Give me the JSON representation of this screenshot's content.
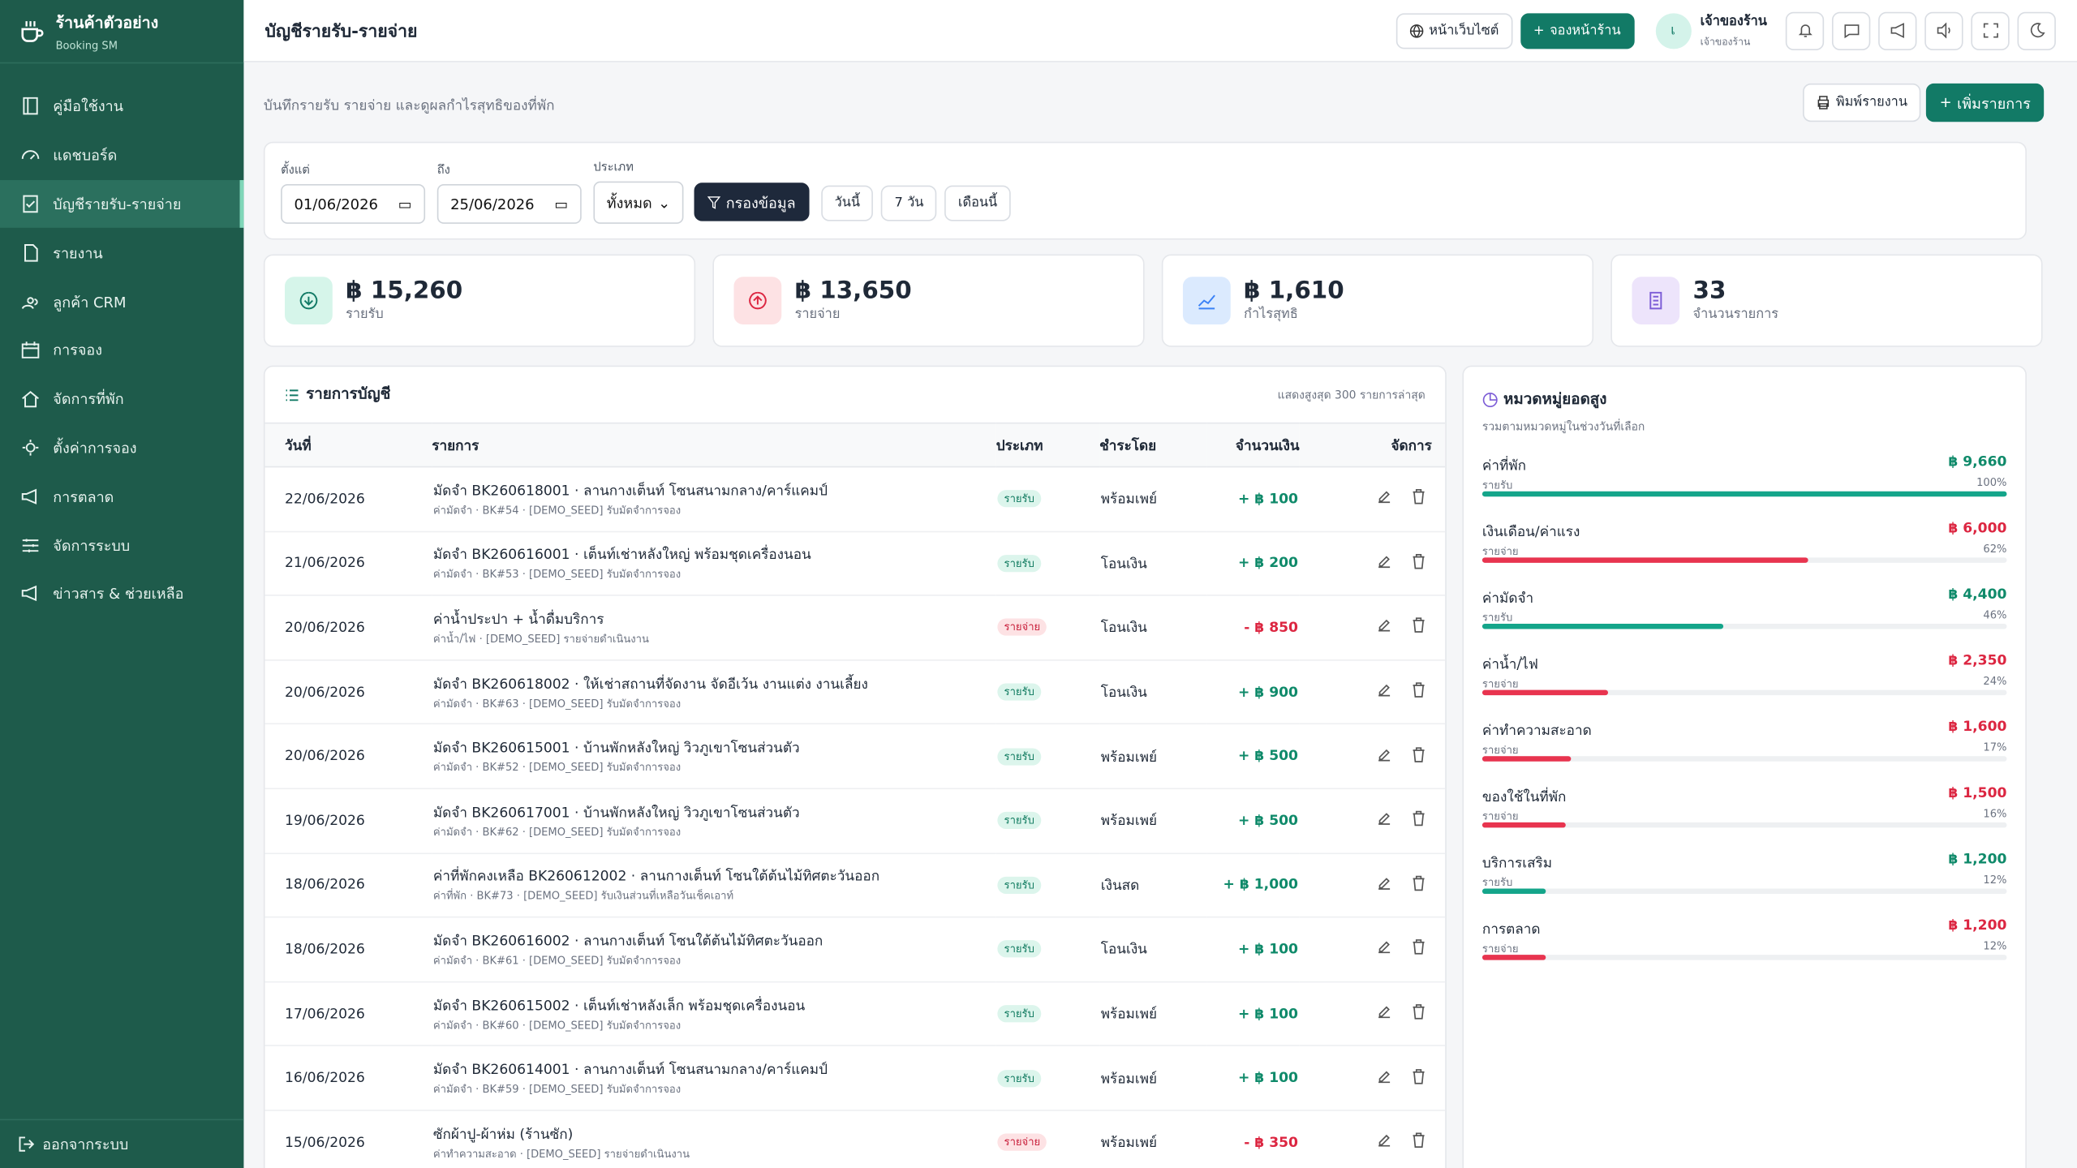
{
  "sidebar": {
    "brand": "ร้านค้าตัวอย่าง",
    "brand_sub": "Booking SM",
    "nav": [
      "คู่มือใช้งาน",
      "แดชบอร์ด",
      "บัญชีรายรับ-รายจ่าย",
      "รายงาน",
      "ลูกค้า CRM",
      "การจอง",
      "จัดการที่พัก",
      "ตั้งค่าการจอง",
      "การตลาด",
      "จัดการระบบ",
      "ข่าวสาร & ช่วยเหลือ"
    ],
    "active": 2,
    "logout": "ออกจากระบบ"
  },
  "header": {
    "title": "บัญชีรายรับ-รายจ่าย",
    "website": "หน้าเว็บไซต์",
    "book": "จองหน้าร้าน",
    "avatar": "เ",
    "user": "เจ้าของร้าน",
    "role": "เจ้าของร้าน"
  },
  "page": {
    "subtitle": "บันทึกรายรับ รายจ่าย และดูผลกำไรสุทธิของที่พัก",
    "print": "พิมพ์รายงาน",
    "add": "เพิ่มรายการ"
  },
  "filters": {
    "from_label": "ตั้งแต่",
    "from": "01/06/2026",
    "to_label": "ถึง",
    "to": "25/06/2026",
    "type_label": "ประเภท",
    "type": "ทั้งหมด",
    "apply": "กรองข้อมูล",
    "quick": [
      "วันนี้",
      "7 วัน",
      "เดือนนี้"
    ]
  },
  "stats": [
    {
      "value": "฿ 15,260",
      "label": "รายรับ"
    },
    {
      "value": "฿ 13,650",
      "label": "รายจ่าย"
    },
    {
      "value": "฿ 1,610",
      "label": "กำไรสุทธิ"
    },
    {
      "value": "33",
      "label": "จำนวนรายการ"
    }
  ],
  "ledger": {
    "title": "รายการบัญชี",
    "note": "แสดงสูงสุด 300 รายการล่าสุด",
    "columns": [
      "วันที่",
      "รายการ",
      "ประเภท",
      "ชำระโดย",
      "จำนวนเงิน",
      "จัดการ"
    ],
    "rows": [
      {
        "date": "22/06/2026",
        "title": "มัดจำ BK260618001 · ลานกางเต็นท์ โซนสนามกลาง/คาร์แคมป์",
        "sub": "ค่ามัดจำ · BK#54 · [DEMO_SEED] รับมัดจำการจอง",
        "type": "รายรับ",
        "pay": "พร้อมเพย์",
        "amount": "+ ฿ 100"
      },
      {
        "date": "21/06/2026",
        "title": "มัดจำ BK260616001 · เต็นท์เช่าหลังใหญ่ พร้อมชุดเครื่องนอน",
        "sub": "ค่ามัดจำ · BK#53 · [DEMO_SEED] รับมัดจำการจอง",
        "type": "รายรับ",
        "pay": "โอนเงิน",
        "amount": "+ ฿ 200"
      },
      {
        "date": "20/06/2026",
        "title": "ค่าน้ำประปา + น้ำดื่มบริการ",
        "sub": "ค่าน้ำ/ไฟ · [DEMO_SEED] รายจ่ายดำเนินงาน",
        "type": "รายจ่าย",
        "pay": "โอนเงิน",
        "amount": "- ฿ 850"
      },
      {
        "date": "20/06/2026",
        "title": "มัดจำ BK260618002 · ให้เช่าสถานที่จัดงาน จัดอีเว้น งานแต่ง งานเลี้ยง",
        "sub": "ค่ามัดจำ · BK#63 · [DEMO_SEED] รับมัดจำการจอง",
        "type": "รายรับ",
        "pay": "โอนเงิน",
        "amount": "+ ฿ 900"
      },
      {
        "date": "20/06/2026",
        "title": "มัดจำ BK260615001 · บ้านพักหลังใหญ่ วิวภูเขาโซนส่วนตัว",
        "sub": "ค่ามัดจำ · BK#52 · [DEMO_SEED] รับมัดจำการจอง",
        "type": "รายรับ",
        "pay": "พร้อมเพย์",
        "amount": "+ ฿ 500"
      },
      {
        "date": "19/06/2026",
        "title": "มัดจำ BK260617001 · บ้านพักหลังใหญ่ วิวภูเขาโซนส่วนตัว",
        "sub": "ค่ามัดจำ · BK#62 · [DEMO_SEED] รับมัดจำการจอง",
        "type": "รายรับ",
        "pay": "พร้อมเพย์",
        "amount": "+ ฿ 500"
      },
      {
        "date": "18/06/2026",
        "title": "ค่าที่พักคงเหลือ BK260612002 · ลานกางเต็นท์ โซนใต้ต้นไม้ทิศตะวันออก",
        "sub": "ค่าที่พัก · BK#73 · [DEMO_SEED] รับเงินส่วนที่เหลือวันเช็คเอาท์",
        "type": "รายรับ",
        "pay": "เงินสด",
        "amount": "+ ฿ 1,000"
      },
      {
        "date": "18/06/2026",
        "title": "มัดจำ BK260616002 · ลานกางเต็นท์ โซนใต้ต้นไม้ทิศตะวันออก",
        "sub": "ค่ามัดจำ · BK#61 · [DEMO_SEED] รับมัดจำการจอง",
        "type": "รายรับ",
        "pay": "โอนเงิน",
        "amount": "+ ฿ 100"
      },
      {
        "date": "17/06/2026",
        "title": "มัดจำ BK260615002 · เต็นท์เช่าหลังเล็ก พร้อมชุดเครื่องนอน",
        "sub": "ค่ามัดจำ · BK#60 · [DEMO_SEED] รับมัดจำการจอง",
        "type": "รายรับ",
        "pay": "พร้อมเพย์",
        "amount": "+ ฿ 100"
      },
      {
        "date": "16/06/2026",
        "title": "มัดจำ BK260614001 · ลานกางเต็นท์ โซนสนามกลาง/คาร์แคมป์",
        "sub": "ค่ามัดจำ · BK#59 · [DEMO_SEED] รับมัดจำการจอง",
        "type": "รายรับ",
        "pay": "พร้อมเพย์",
        "amount": "+ ฿ 100"
      },
      {
        "date": "15/06/2026",
        "title": "ซักผ้าปู-ผ้าห่ม (ร้านซัก)",
        "sub": "ค่าทำความสะอาด · [DEMO_SEED] รายจ่ายดำเนินงาน",
        "type": "รายจ่าย",
        "pay": "พร้อมเพย์",
        "amount": "- ฿ 350"
      }
    ]
  },
  "categories": {
    "title": "หมวดหมู่ยอดสูง",
    "subtitle": "รวมตามหมวดหมู่ในช่วงวันที่เลือก",
    "items": [
      {
        "name": "ค่าที่พัก",
        "amount": "฿ 9,660",
        "kind": "รายรับ",
        "pct": "100%"
      },
      {
        "name": "เงินเดือน/ค่าแรง",
        "amount": "฿ 6,000",
        "kind": "รายจ่าย",
        "pct": "62%"
      },
      {
        "name": "ค่ามัดจำ",
        "amount": "฿ 4,400",
        "kind": "รายรับ",
        "pct": "46%"
      },
      {
        "name": "ค่าน้ำ/ไฟ",
        "amount": "฿ 2,350",
        "kind": "รายจ่าย",
        "pct": "24%"
      },
      {
        "name": "ค่าทำความสะอาด",
        "amount": "฿ 1,600",
        "kind": "รายจ่าย",
        "pct": "17%"
      },
      {
        "name": "ของใช้ในที่พัก",
        "amount": "฿ 1,500",
        "kind": "รายจ่าย",
        "pct": "16%"
      },
      {
        "name": "บริการเสริม",
        "amount": "฿ 1,200",
        "kind": "รายรับ",
        "pct": "12%"
      },
      {
        "name": "การตลาด",
        "amount": "฿ 1,200",
        "kind": "รายจ่าย",
        "pct": "12%"
      }
    ]
  }
}
